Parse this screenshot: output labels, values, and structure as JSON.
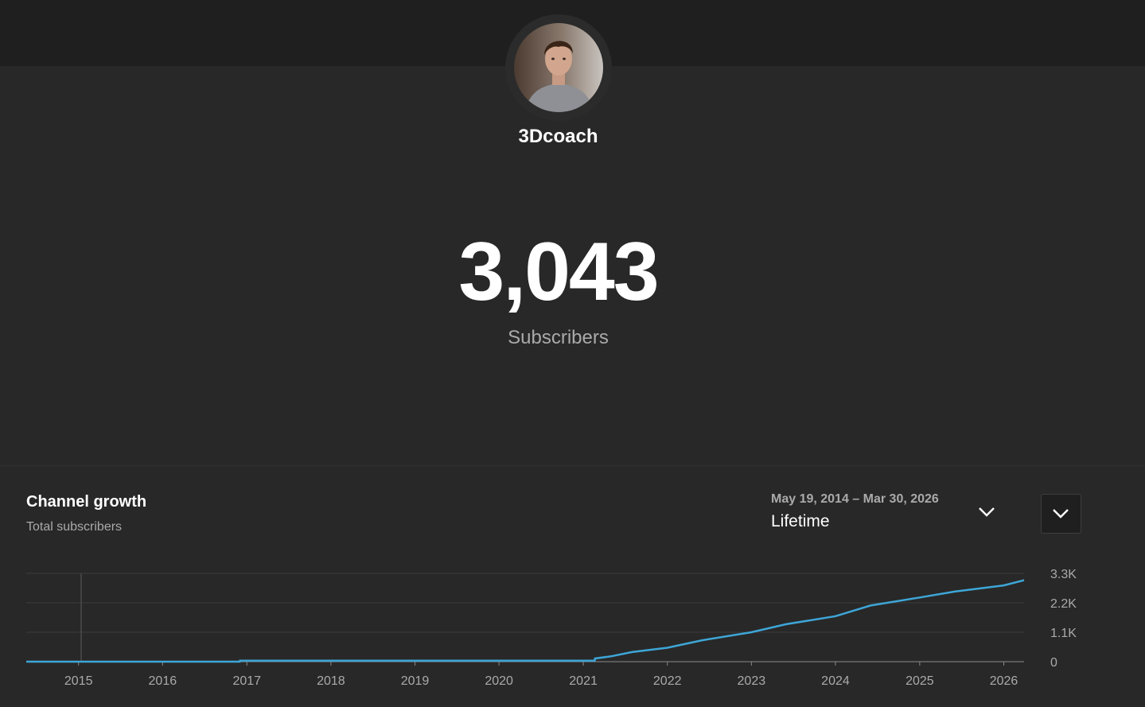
{
  "channel": {
    "name": "3Dcoach",
    "subscriber_count": "3,043",
    "subscriber_label": "Subscribers"
  },
  "growth": {
    "title": "Channel growth",
    "subtitle": "Total subscribers",
    "date_range": "May 19, 2014 – Mar 30, 2026",
    "period": "Lifetime"
  },
  "icons": {
    "range_dropdown": "chevron-down-icon",
    "collapse": "chevron-down-icon"
  },
  "colors": {
    "line": "#3ea6d7",
    "background": "#282828",
    "topbar": "#1f1f1f"
  },
  "chart_data": {
    "type": "line",
    "title": "Channel growth",
    "subtitle": "Total subscribers",
    "x_tick_labels": [
      "2015",
      "2016",
      "2017",
      "2018",
      "2019",
      "2020",
      "2021",
      "2022",
      "2023",
      "2024",
      "2025",
      "2026"
    ],
    "y_tick_labels": [
      "0",
      "1.1K",
      "2.2K",
      "3.3K"
    ],
    "y_ticks": [
      0,
      1100,
      2200,
      3300
    ],
    "ylim": [
      0,
      3300
    ],
    "xlim": [
      "2014-05-19",
      "2026-03-30"
    ],
    "grid": true,
    "legend": "none",
    "series": [
      {
        "x": [
          "2014-05-19",
          "2016-12-01",
          "2016-12-02",
          "2021-02-20",
          "2021-02-21",
          "2021-05-01",
          "2021-08-01",
          "2022-01-01",
          "2022-06-01",
          "2023-01-01",
          "2023-06-01",
          "2024-01-01",
          "2024-06-01",
          "2025-01-01",
          "2025-06-01",
          "2026-01-01",
          "2026-03-30"
        ],
        "y": [
          0,
          0,
          40,
          40,
          120,
          200,
          360,
          520,
          800,
          1100,
          1400,
          1700,
          2100,
          2400,
          2620,
          2850,
          3043
        ]
      }
    ]
  }
}
